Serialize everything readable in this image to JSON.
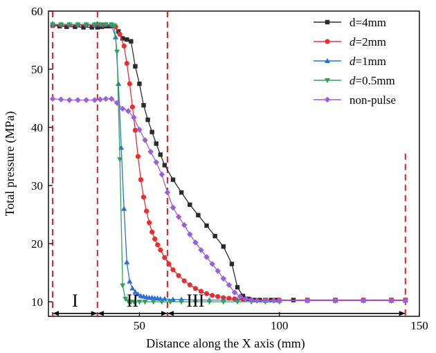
{
  "chart_data": {
    "type": "line",
    "title": "",
    "xlabel": "Distance along the X axis (mm)",
    "ylabel": "Total pressure (MPa)",
    "xlim": [
      17.5,
      150
    ],
    "ylim": [
      7.5,
      60
    ],
    "xticks": [
      50,
      100,
      150
    ],
    "yticks": [
      10,
      20,
      30,
      40,
      50,
      60
    ],
    "legend_position": "top-right",
    "series": [
      {
        "name": "d=4mm",
        "name_prefix": "d",
        "name_suffix": "=4mm",
        "italic_prefix": false,
        "color": "#2b2b2b",
        "marker": "square",
        "x": [
          19,
          21.5,
          24,
          27,
          30,
          33,
          35,
          36.5,
          38,
          39.5,
          41,
          42.5,
          44,
          45.5,
          47,
          48.5,
          50,
          51.5,
          53,
          54.5,
          56,
          57.5,
          59,
          62,
          65,
          68,
          71,
          74,
          77,
          80,
          83,
          85,
          87,
          89,
          91,
          93,
          95,
          97,
          99,
          105,
          110,
          120,
          130,
          140,
          145
        ],
        "y": [
          57.5,
          57.4,
          57.3,
          57.3,
          57.2,
          57.2,
          57.2,
          57.3,
          57.4,
          57.4,
          57.5,
          56.5,
          55.3,
          55.1,
          54.8,
          50.5,
          47.5,
          43.8,
          41.3,
          39.2,
          37.2,
          35.3,
          33.5,
          31.0,
          28.8,
          26.7,
          24.9,
          23.1,
          21.3,
          19.5,
          16.5,
          12.5,
          11.0,
          10.5,
          10.3,
          10.3,
          10.3,
          10.3,
          10.3,
          10.3,
          10.3,
          10.3,
          10.3,
          10.3,
          10.3
        ]
      },
      {
        "name": "d=2mm",
        "name_prefix": "d",
        "name_suffix": "=2mm",
        "italic_prefix": true,
        "color": "#e63030",
        "marker": "circle",
        "x": [
          19,
          22,
          25,
          28,
          31,
          34,
          37,
          40,
          41.5,
          43,
          44.5,
          45.5,
          46.5,
          47.5,
          48.5,
          49.5,
          50.5,
          51.5,
          52.5,
          53.5,
          54.5,
          55.5,
          56.5,
          57.5,
          59,
          60.5,
          62,
          64,
          66,
          68,
          70,
          72,
          74,
          76,
          78,
          80,
          82,
          84,
          87,
          90,
          95,
          100,
          110,
          120,
          130,
          140,
          145
        ],
        "y": [
          57.5,
          57.6,
          57.6,
          57.6,
          57.6,
          57.6,
          57.6,
          57.6,
          57.3,
          56.0,
          54.0,
          51.0,
          47.5,
          43.5,
          39.5,
          35.0,
          31.0,
          28.0,
          25.6,
          23.6,
          22.0,
          20.8,
          19.8,
          18.9,
          17.6,
          16.5,
          15.5,
          14.5,
          13.6,
          12.9,
          12.3,
          11.8,
          11.4,
          11.1,
          10.9,
          10.7,
          10.6,
          10.5,
          10.4,
          10.3,
          10.3,
          10.3,
          10.3,
          10.3,
          10.3,
          10.3,
          10.3
        ]
      },
      {
        "name": "d=1mm",
        "name_prefix": "d",
        "name_suffix": "=1mm",
        "italic_prefix": true,
        "color": "#2a6fd6",
        "marker": "triangle-up",
        "x": [
          19,
          22,
          25,
          28,
          31,
          34,
          36,
          38,
          40,
          41.5,
          42.5,
          43.5,
          44.5,
          45.5,
          46.5,
          47.5,
          48.5,
          49.5,
          50.5,
          51.5,
          52.5,
          53.5,
          54.5,
          55.5,
          56.5,
          57.5,
          59,
          62,
          65,
          70,
          75,
          80,
          85,
          90,
          95,
          100,
          110,
          120,
          130,
          140,
          145
        ],
        "y": [
          57.7,
          57.7,
          57.7,
          57.7,
          57.7,
          57.7,
          57.7,
          57.7,
          57.7,
          55.5,
          47.5,
          36.5,
          26.0,
          16.8,
          13.5,
          12.3,
          11.7,
          11.3,
          11.0,
          10.9,
          10.8,
          10.7,
          10.7,
          10.6,
          10.6,
          10.5,
          10.5,
          10.4,
          10.4,
          10.3,
          10.3,
          10.3,
          10.3,
          10.3,
          10.2,
          10.2,
          10.2,
          10.2,
          10.2,
          10.2,
          10.2
        ]
      },
      {
        "name": "d=0.5mm",
        "name_prefix": "d",
        "name_suffix": "=0.5mm",
        "italic_prefix": true,
        "color": "#2ea35a",
        "marker": "triangle-down",
        "x": [
          19,
          22,
          25,
          28,
          31,
          34,
          36,
          38,
          40,
          41,
          42,
          43,
          44,
          45,
          46,
          47,
          48,
          50,
          52,
          55,
          58,
          61,
          65,
          70,
          75,
          80,
          85,
          90,
          95,
          100
        ],
        "y": [
          57.7,
          57.7,
          57.7,
          57.7,
          57.7,
          57.7,
          57.7,
          57.7,
          57.7,
          57.5,
          53.0,
          34.5,
          12.8,
          10.5,
          10.1,
          10.0,
          10.0,
          10.0,
          10.0,
          10.0,
          10.0,
          10.0,
          10.0,
          10.0,
          10.0,
          10.0,
          10.0,
          10.0,
          10.0,
          10.0
        ]
      },
      {
        "name": "non-pulse",
        "name_prefix": "",
        "name_suffix": "non-pulse",
        "italic_prefix": false,
        "color": "#9a5fd9",
        "marker": "diamond",
        "x": [
          19,
          22,
          25,
          28,
          31,
          34,
          36,
          38,
          40,
          42,
          44,
          46,
          48,
          50,
          52,
          54,
          56,
          58,
          60,
          62,
          64,
          66,
          68,
          70,
          72,
          74,
          76,
          78,
          80,
          82,
          84,
          86,
          88,
          90,
          92,
          95,
          98,
          100,
          110,
          120,
          130,
          140,
          145
        ],
        "y": [
          44.9,
          44.8,
          44.7,
          44.7,
          44.7,
          44.7,
          44.8,
          44.9,
          44.9,
          44.2,
          43.2,
          42.8,
          41.7,
          39.6,
          37.8,
          35.8,
          34.0,
          31.9,
          28.8,
          26.2,
          24.6,
          23.2,
          21.6,
          20.2,
          18.9,
          17.7,
          16.5,
          15.3,
          14.0,
          12.9,
          11.6,
          10.9,
          10.5,
          10.3,
          10.2,
          10.2,
          10.2,
          10.2,
          10.2,
          10.2,
          10.2,
          10.2,
          10.2
        ]
      }
    ],
    "divider_lines_x": [
      19,
      35,
      60,
      145
    ],
    "regions": [
      {
        "label": "I",
        "x_start": 19,
        "x_end": 35
      },
      {
        "label": "II",
        "x_start": 35,
        "x_end": 60
      },
      {
        "label": "III",
        "x_start": 60,
        "x_end": 145
      }
    ],
    "region_arrow_y": 8.0,
    "colors": {
      "divider": "#e02020",
      "axis": "#000000"
    }
  }
}
